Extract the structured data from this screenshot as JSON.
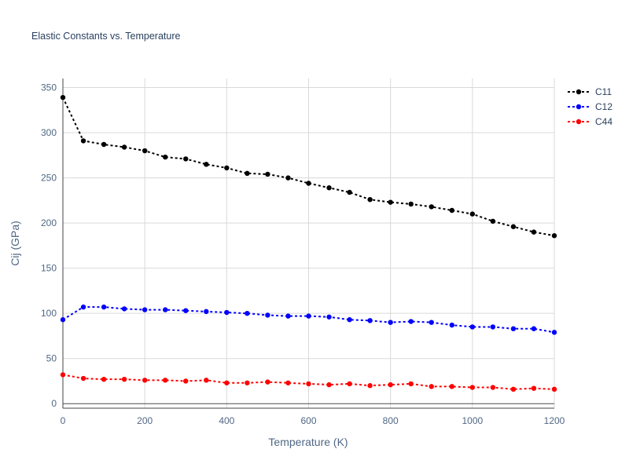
{
  "chart_data": {
    "type": "line",
    "title": "Elastic Constants vs. Temperature",
    "xlabel": "Temperature (K)",
    "ylabel": "Cij (GPa)",
    "xlim": [
      0,
      1200
    ],
    "ylim": [
      -5,
      360
    ],
    "xticks": [
      0,
      200,
      400,
      600,
      800,
      1000,
      1200
    ],
    "yticks": [
      0,
      50,
      100,
      150,
      200,
      250,
      300,
      350
    ],
    "grid": true,
    "legend_position": "top-right",
    "line_style": "dotted with markers",
    "x": [
      0,
      50,
      100,
      150,
      200,
      250,
      300,
      350,
      400,
      450,
      500,
      550,
      600,
      650,
      700,
      750,
      800,
      850,
      900,
      950,
      1000,
      1050,
      1100,
      1150,
      1200
    ],
    "series": [
      {
        "name": "C11",
        "color": "#000000",
        "values": [
          339,
          291,
          287,
          284,
          280,
          273,
          271,
          265,
          261,
          255,
          254,
          250,
          244,
          239,
          234,
          226,
          223,
          221,
          218,
          214,
          210,
          202,
          196,
          190,
          186
        ]
      },
      {
        "name": "C12",
        "color": "#0000ff",
        "values": [
          93,
          107,
          107,
          105,
          104,
          104,
          103,
          102,
          101,
          100,
          98,
          97,
          97,
          96,
          93,
          92,
          90,
          91,
          90,
          87,
          85,
          85,
          83,
          83,
          79
        ]
      },
      {
        "name": "C44",
        "color": "#ff0000",
        "values": [
          32,
          28,
          27,
          27,
          26,
          26,
          25,
          26,
          23,
          23,
          24,
          23,
          22,
          21,
          22,
          20,
          21,
          22,
          19,
          19,
          18,
          18,
          16,
          17,
          16
        ]
      }
    ]
  }
}
